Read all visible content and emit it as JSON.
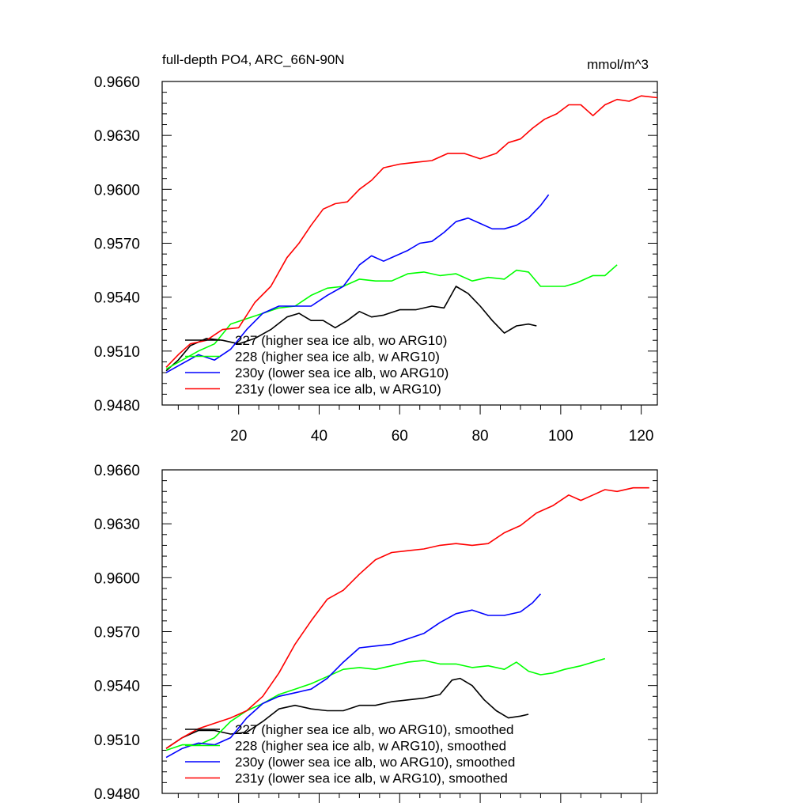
{
  "title": "full-depth PO4, ARC_66N-90N",
  "units": "mmol/m^3",
  "colors": {
    "227": "#000000",
    "228": "#00ff00",
    "230y": "#0000ff",
    "231y": "#ff0000"
  },
  "chart_data": [
    {
      "type": "line",
      "ylim": [
        0.948,
        0.966
      ],
      "yticks": [
        "0.9480",
        "0.9510",
        "0.9540",
        "0.9570",
        "0.9600",
        "0.9630",
        "0.9660"
      ],
      "xlim": [
        1,
        124
      ],
      "xticks": [
        "20",
        "40",
        "60",
        "80",
        "100",
        "120"
      ],
      "series": [
        {
          "name": "227 (higher sea ice alb, wo ARG10)",
          "color": "#000000",
          "points": [
            [
              2,
              0.9499
            ],
            [
              5,
              0.9505
            ],
            [
              8,
              0.9513
            ],
            [
              12,
              0.9517
            ],
            [
              16,
              0.9516
            ],
            [
              20,
              0.9514
            ],
            [
              24,
              0.9517
            ],
            [
              28,
              0.9522
            ],
            [
              32,
              0.9529
            ],
            [
              35,
              0.9531
            ],
            [
              38,
              0.9527
            ],
            [
              41,
              0.9527
            ],
            [
              44,
              0.9523
            ],
            [
              47,
              0.9527
            ],
            [
              50,
              0.9532
            ],
            [
              53,
              0.9529
            ],
            [
              56,
              0.953
            ],
            [
              60,
              0.9533
            ],
            [
              64,
              0.9533
            ],
            [
              68,
              0.9535
            ],
            [
              71,
              0.9534
            ],
            [
              74,
              0.9546
            ],
            [
              77,
              0.9542
            ],
            [
              80,
              0.9535
            ],
            [
              83,
              0.9527
            ],
            [
              86,
              0.952
            ],
            [
              89,
              0.9524
            ],
            [
              92,
              0.9525
            ],
            [
              94,
              0.9524
            ]
          ]
        },
        {
          "name": "228 (higher sea ice alb, w ARG10)",
          "color": "#00ff00",
          "points": [
            [
              2,
              0.95
            ],
            [
              6,
              0.9505
            ],
            [
              10,
              0.951
            ],
            [
              14,
              0.9514
            ],
            [
              18,
              0.9525
            ],
            [
              22,
              0.9528
            ],
            [
              26,
              0.9531
            ],
            [
              30,
              0.9534
            ],
            [
              34,
              0.9535
            ],
            [
              38,
              0.9541
            ],
            [
              42,
              0.9545
            ],
            [
              46,
              0.9546
            ],
            [
              50,
              0.955
            ],
            [
              54,
              0.9549
            ],
            [
              58,
              0.9549
            ],
            [
              62,
              0.9553
            ],
            [
              66,
              0.9554
            ],
            [
              70,
              0.9552
            ],
            [
              74,
              0.9553
            ],
            [
              78,
              0.9549
            ],
            [
              82,
              0.9551
            ],
            [
              86,
              0.955
            ],
            [
              89,
              0.9555
            ],
            [
              92,
              0.9554
            ],
            [
              95,
              0.9546
            ],
            [
              98,
              0.9546
            ],
            [
              101,
              0.9546
            ],
            [
              104,
              0.9548
            ],
            [
              108,
              0.9552
            ],
            [
              111,
              0.9552
            ],
            [
              114,
              0.9558
            ]
          ]
        },
        {
          "name": "230y (lower sea ice alb, wo ARG10)",
          "color": "#0000ff",
          "points": [
            [
              2,
              0.9498
            ],
            [
              6,
              0.9503
            ],
            [
              10,
              0.9508
            ],
            [
              14,
              0.9505
            ],
            [
              18,
              0.9511
            ],
            [
              22,
              0.9522
            ],
            [
              26,
              0.9531
            ],
            [
              30,
              0.9535
            ],
            [
              34,
              0.9535
            ],
            [
              38,
              0.9535
            ],
            [
              42,
              0.9541
            ],
            [
              46,
              0.9546
            ],
            [
              50,
              0.9558
            ],
            [
              53,
              0.9563
            ],
            [
              56,
              0.956
            ],
            [
              59,
              0.9563
            ],
            [
              62,
              0.9566
            ],
            [
              65,
              0.957
            ],
            [
              68,
              0.9571
            ],
            [
              71,
              0.9576
            ],
            [
              74,
              0.9582
            ],
            [
              77,
              0.9584
            ],
            [
              80,
              0.9581
            ],
            [
              83,
              0.9578
            ],
            [
              86,
              0.9578
            ],
            [
              89,
              0.958
            ],
            [
              92,
              0.9584
            ],
            [
              95,
              0.9591
            ],
            [
              97,
              0.9597
            ]
          ]
        },
        {
          "name": "231y (lower sea ice alb, w ARG10)",
          "color": "#ff0000",
          "points": [
            [
              2,
              0.9501
            ],
            [
              5,
              0.9508
            ],
            [
              8,
              0.9514
            ],
            [
              12,
              0.9516
            ],
            [
              16,
              0.9522
            ],
            [
              20,
              0.9523
            ],
            [
              24,
              0.9537
            ],
            [
              28,
              0.9546
            ],
            [
              32,
              0.9562
            ],
            [
              35,
              0.957
            ],
            [
              38,
              0.958
            ],
            [
              41,
              0.9589
            ],
            [
              44,
              0.9592
            ],
            [
              47,
              0.9593
            ],
            [
              50,
              0.96
            ],
            [
              53,
              0.9605
            ],
            [
              56,
              0.9612
            ],
            [
              60,
              0.9614
            ],
            [
              64,
              0.9615
            ],
            [
              68,
              0.9616
            ],
            [
              72,
              0.962
            ],
            [
              76,
              0.962
            ],
            [
              80,
              0.9617
            ],
            [
              84,
              0.962
            ],
            [
              87,
              0.9626
            ],
            [
              90,
              0.9628
            ],
            [
              93,
              0.9634
            ],
            [
              96,
              0.9639
            ],
            [
              99,
              0.9642
            ],
            [
              102,
              0.9647
            ],
            [
              105,
              0.9647
            ],
            [
              108,
              0.9641
            ],
            [
              111,
              0.9647
            ],
            [
              114,
              0.965
            ],
            [
              117,
              0.9649
            ],
            [
              120,
              0.9652
            ],
            [
              124,
              0.9651
            ]
          ]
        }
      ]
    },
    {
      "type": "line",
      "ylim": [
        0.948,
        0.966
      ],
      "yticks": [
        "0.9480",
        "0.9510",
        "0.9540",
        "0.9570",
        "0.9600",
        "0.9630",
        "0.9660"
      ],
      "xlim": [
        1,
        124
      ],
      "series": [
        {
          "name": "227 (higher sea ice alb, wo ARG10), smoothed",
          "color": "#000000",
          "points": [
            [
              2,
              0.9505
            ],
            [
              6,
              0.9511
            ],
            [
              10,
              0.9515
            ],
            [
              14,
              0.9515
            ],
            [
              18,
              0.9513
            ],
            [
              22,
              0.9514
            ],
            [
              26,
              0.952
            ],
            [
              30,
              0.9527
            ],
            [
              34,
              0.9529
            ],
            [
              38,
              0.9527
            ],
            [
              42,
              0.9526
            ],
            [
              46,
              0.9526
            ],
            [
              50,
              0.9529
            ],
            [
              54,
              0.9529
            ],
            [
              58,
              0.9531
            ],
            [
              62,
              0.9532
            ],
            [
              66,
              0.9533
            ],
            [
              70,
              0.9535
            ],
            [
              73,
              0.9543
            ],
            [
              75,
              0.9544
            ],
            [
              78,
              0.954
            ],
            [
              81,
              0.9532
            ],
            [
              84,
              0.9526
            ],
            [
              87,
              0.9522
            ],
            [
              90,
              0.9523
            ],
            [
              92,
              0.9524
            ]
          ]
        },
        {
          "name": "228 (higher sea ice alb, w ARG10), smoothed",
          "color": "#00ff00",
          "points": [
            [
              2,
              0.9504
            ],
            [
              6,
              0.9507
            ],
            [
              10,
              0.9507
            ],
            [
              14,
              0.9511
            ],
            [
              18,
              0.952
            ],
            [
              22,
              0.9526
            ],
            [
              26,
              0.953
            ],
            [
              30,
              0.9535
            ],
            [
              34,
              0.9538
            ],
            [
              38,
              0.9541
            ],
            [
              42,
              0.9545
            ],
            [
              46,
              0.9549
            ],
            [
              50,
              0.955
            ],
            [
              54,
              0.9549
            ],
            [
              58,
              0.9551
            ],
            [
              62,
              0.9553
            ],
            [
              66,
              0.9554
            ],
            [
              70,
              0.9552
            ],
            [
              74,
              0.9552
            ],
            [
              78,
              0.955
            ],
            [
              82,
              0.9551
            ],
            [
              86,
              0.9549
            ],
            [
              89,
              0.9553
            ],
            [
              92,
              0.9548
            ],
            [
              95,
              0.9546
            ],
            [
              98,
              0.9547
            ],
            [
              101,
              0.9549
            ],
            [
              105,
              0.9551
            ],
            [
              108,
              0.9553
            ],
            [
              111,
              0.9555
            ]
          ]
        },
        {
          "name": "230y (lower sea ice alb, wo ARG10), smoothed",
          "color": "#0000ff",
          "points": [
            [
              2,
              0.95
            ],
            [
              6,
              0.9505
            ],
            [
              10,
              0.9508
            ],
            [
              14,
              0.9507
            ],
            [
              18,
              0.9511
            ],
            [
              22,
              0.9522
            ],
            [
              26,
              0.953
            ],
            [
              30,
              0.9534
            ],
            [
              34,
              0.9536
            ],
            [
              38,
              0.9538
            ],
            [
              42,
              0.9544
            ],
            [
              46,
              0.9553
            ],
            [
              50,
              0.9561
            ],
            [
              54,
              0.9562
            ],
            [
              58,
              0.9563
            ],
            [
              62,
              0.9566
            ],
            [
              66,
              0.9569
            ],
            [
              70,
              0.9575
            ],
            [
              74,
              0.958
            ],
            [
              78,
              0.9582
            ],
            [
              82,
              0.9579
            ],
            [
              86,
              0.9579
            ],
            [
              90,
              0.9581
            ],
            [
              93,
              0.9586
            ],
            [
              95,
              0.9591
            ]
          ]
        },
        {
          "name": "231y (lower sea ice alb, w ARG10), smoothed",
          "color": "#ff0000",
          "points": [
            [
              2,
              0.9505
            ],
            [
              6,
              0.9511
            ],
            [
              10,
              0.9516
            ],
            [
              14,
              0.9519
            ],
            [
              18,
              0.9522
            ],
            [
              22,
              0.9526
            ],
            [
              26,
              0.9534
            ],
            [
              30,
              0.9547
            ],
            [
              34,
              0.9563
            ],
            [
              38,
              0.9576
            ],
            [
              42,
              0.9588
            ],
            [
              46,
              0.9593
            ],
            [
              50,
              0.9602
            ],
            [
              54,
              0.961
            ],
            [
              58,
              0.9614
            ],
            [
              62,
              0.9615
            ],
            [
              66,
              0.9616
            ],
            [
              70,
              0.9618
            ],
            [
              74,
              0.9619
            ],
            [
              78,
              0.9618
            ],
            [
              82,
              0.9619
            ],
            [
              86,
              0.9625
            ],
            [
              90,
              0.9629
            ],
            [
              94,
              0.9636
            ],
            [
              98,
              0.964
            ],
            [
              102,
              0.9646
            ],
            [
              105,
              0.9643
            ],
            [
              108,
              0.9646
            ],
            [
              111,
              0.9649
            ],
            [
              114,
              0.9648
            ],
            [
              118,
              0.965
            ],
            [
              122,
              0.965
            ]
          ]
        }
      ]
    }
  ]
}
